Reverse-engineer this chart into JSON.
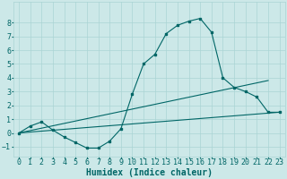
{
  "xlabel": "Humidex (Indice chaleur)",
  "ylabel": "",
  "background_color": "#cce8e8",
  "line_color": "#006666",
  "xlim": [
    -0.5,
    23.5
  ],
  "ylim": [
    -1.7,
    9.5
  ],
  "xticks": [
    0,
    1,
    2,
    3,
    4,
    5,
    6,
    7,
    8,
    9,
    10,
    11,
    12,
    13,
    14,
    15,
    16,
    17,
    18,
    19,
    20,
    21,
    22,
    23
  ],
  "yticks": [
    -1,
    0,
    1,
    2,
    3,
    4,
    5,
    6,
    7,
    8
  ],
  "line1_x": [
    0,
    1,
    2,
    3,
    4,
    5,
    6,
    7,
    8,
    9,
    10,
    11,
    12,
    13,
    14,
    15,
    16,
    17,
    18,
    19,
    20,
    21,
    22,
    23
  ],
  "line1_y": [
    0.0,
    0.5,
    0.8,
    0.2,
    -0.3,
    -0.7,
    -1.1,
    -1.1,
    -0.6,
    0.3,
    2.8,
    5.0,
    5.7,
    7.2,
    7.8,
    8.1,
    8.3,
    7.3,
    4.0,
    3.3,
    3.0,
    2.6,
    1.5,
    1.5
  ],
  "line2_x": [
    0,
    22
  ],
  "line2_y": [
    0.0,
    3.8
  ],
  "line3_x": [
    0,
    23
  ],
  "line3_y": [
    0.0,
    1.5
  ],
  "grid_color": "#aad4d4",
  "xlabel_fontsize": 7,
  "tick_fontsize": 6,
  "marker_size": 2.0,
  "line_width": 0.8
}
